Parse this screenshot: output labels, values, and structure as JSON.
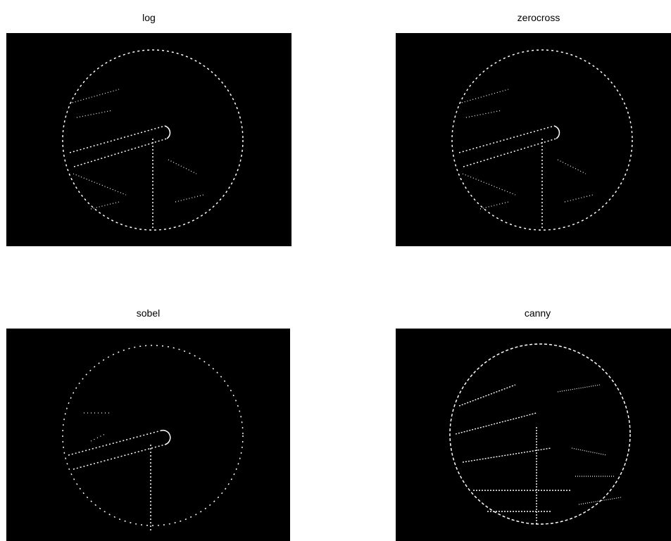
{
  "panels": [
    {
      "id": "log",
      "title": "log"
    },
    {
      "id": "zerocross",
      "title": "zerocross"
    },
    {
      "id": "sobel",
      "title": "sobel"
    },
    {
      "id": "canny",
      "title": "canny"
    }
  ],
  "colors": {
    "background": "#000000",
    "edges": "#ffffff"
  }
}
